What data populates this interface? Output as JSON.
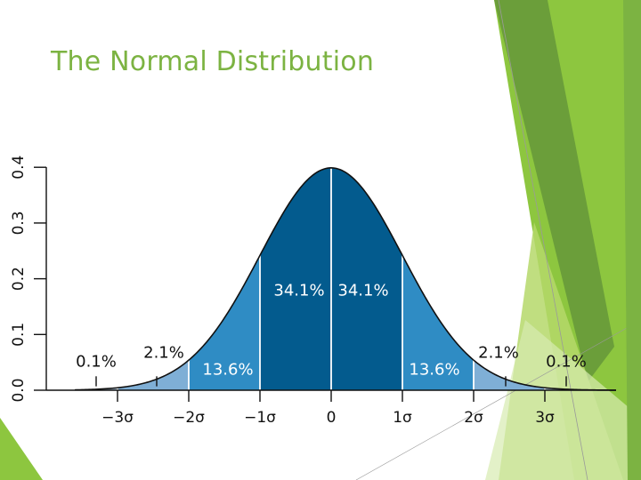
{
  "slide": {
    "title": "The Normal Distribution",
    "accent_colors": [
      "#8dc63f",
      "#6b9e3a",
      "#b5d86a",
      "#d7ebb0"
    ]
  },
  "chart_data": {
    "type": "area",
    "title": "",
    "xlabel": "",
    "ylabel": "",
    "distribution": "standard normal",
    "xlim": [
      -3.6,
      4.0
    ],
    "ylim": [
      0,
      0.4
    ],
    "y_ticks": [
      0.0,
      0.1,
      0.2,
      0.3,
      0.4
    ],
    "y_tick_labels": [
      "0.0",
      "0.1",
      "0.2",
      "0.3",
      "0.4"
    ],
    "x_ticks": [
      -3,
      -2,
      -1,
      0,
      1,
      2,
      3
    ],
    "x_tick_labels": [
      "−3σ",
      "−2σ",
      "−1σ",
      "0",
      "1σ",
      "2σ",
      "3σ"
    ],
    "grid": false,
    "regions": [
      {
        "from": -3.6,
        "to": -3,
        "percent": "0.1%",
        "color": "#b9d0e4"
      },
      {
        "from": -3,
        "to": -2,
        "percent": "2.1%",
        "color": "#7fafd6"
      },
      {
        "from": -2,
        "to": -1,
        "percent": "13.6%",
        "color": "#2f8cc4"
      },
      {
        "from": -1,
        "to": 0,
        "percent": "34.1%",
        "color": "#035b8e"
      },
      {
        "from": 0,
        "to": 1,
        "percent": "34.1%",
        "color": "#035b8e"
      },
      {
        "from": 1,
        "to": 2,
        "percent": "13.6%",
        "color": "#2f8cc4"
      },
      {
        "from": 2,
        "to": 3,
        "percent": "2.1%",
        "color": "#7fafd6"
      },
      {
        "from": 3,
        "to": 4.0,
        "percent": "0.1%",
        "color": "#b9d0e4"
      }
    ],
    "annotations": [
      {
        "text": "0.1%",
        "x": -3.3,
        "y": 0.042,
        "color": "#111111",
        "anchor": "middle"
      },
      {
        "text": "2.1%",
        "x": -2.35,
        "y": 0.058,
        "color": "#111111",
        "anchor": "middle"
      },
      {
        "text": "13.6%",
        "x": -1.45,
        "y": 0.028,
        "color": "#ffffff",
        "anchor": "middle"
      },
      {
        "text": "34.1%",
        "x": -0.45,
        "y": 0.17,
        "color": "#ffffff",
        "anchor": "middle"
      },
      {
        "text": "34.1%",
        "x": 0.45,
        "y": 0.17,
        "color": "#ffffff",
        "anchor": "middle"
      },
      {
        "text": "13.6%",
        "x": 1.45,
        "y": 0.028,
        "color": "#ffffff",
        "anchor": "middle"
      },
      {
        "text": "2.1%",
        "x": 2.35,
        "y": 0.058,
        "color": "#111111",
        "anchor": "middle"
      },
      {
        "text": "0.1%",
        "x": 3.3,
        "y": 0.042,
        "color": "#111111",
        "anchor": "middle"
      }
    ],
    "leader_marks": [
      -3.3,
      -2.45,
      2.45,
      3.3
    ]
  }
}
